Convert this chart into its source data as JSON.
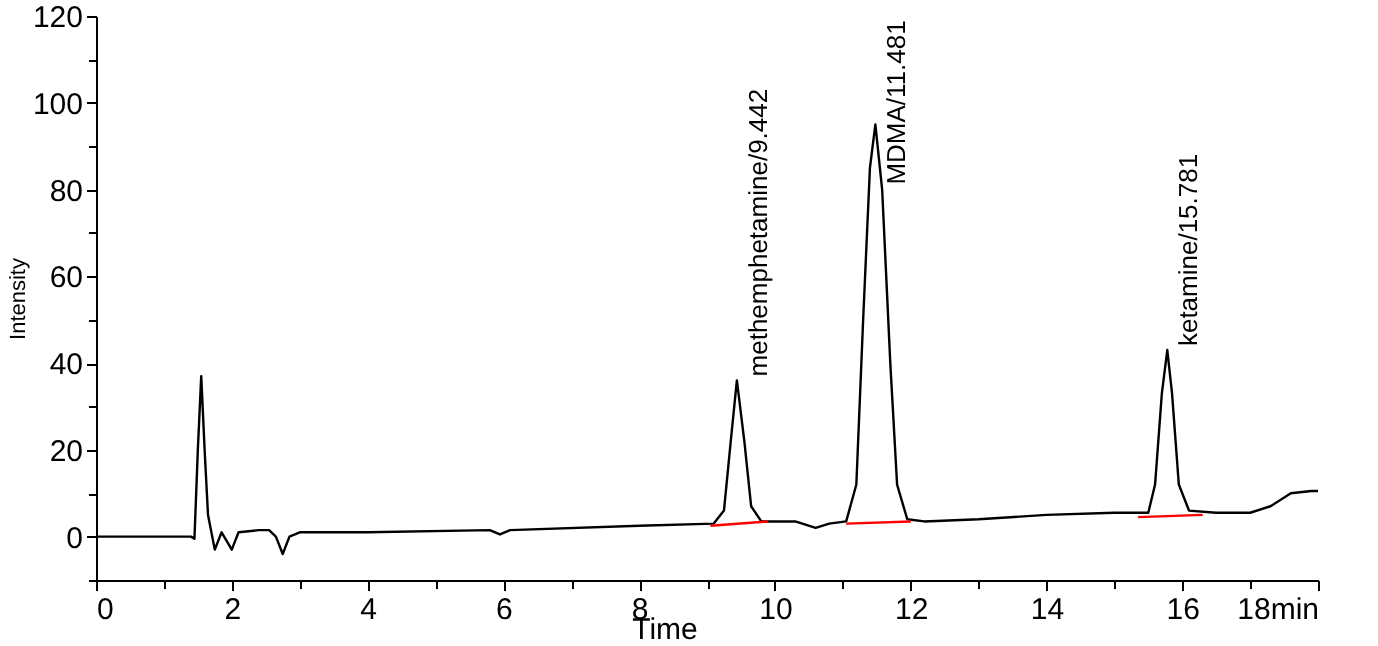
{
  "chart_data": {
    "type": "line",
    "xlabel": "Time",
    "ylabel": "Intensity",
    "xlim": [
      0,
      18
    ],
    "ylim": [
      -10,
      120
    ],
    "xticks": [
      0,
      {
        "value": 1,
        "label": null
      },
      2,
      {
        "value": 3,
        "label": null
      },
      4,
      {
        "value": 5,
        "label": null
      },
      6,
      {
        "value": 7,
        "label": null
      },
      8,
      {
        "value": 9,
        "label": null
      },
      10,
      {
        "value": 11,
        "label": null
      },
      12,
      {
        "value": 13,
        "label": null
      },
      14,
      {
        "value": 15,
        "label": null
      },
      16,
      {
        "value": 17,
        "label": null
      },
      {
        "value": 18,
        "label": "18min"
      }
    ],
    "yticks": [
      {
        "value": -10,
        "label": null
      },
      0,
      {
        "value": 10,
        "label": null
      },
      20,
      {
        "value": 30,
        "label": null
      },
      40,
      {
        "value": 50,
        "label": null
      },
      60,
      {
        "value": 70,
        "label": null
      },
      80,
      {
        "value": 90,
        "label": null
      },
      100,
      {
        "value": 110,
        "label": null
      },
      120
    ],
    "grid": false,
    "marker": "none",
    "line_style": "solid",
    "series": [
      {
        "color": "#000000",
        "x": [
          0,
          1.4,
          1.45,
          1.5,
          1.55,
          1.6,
          1.65,
          1.75,
          1.85,
          2.0,
          2.1,
          2.4,
          2.55,
          2.65,
          2.75,
          2.85,
          3.0,
          4,
          5.8,
          5.95,
          6.1,
          8,
          9.1,
          9.25,
          9.35,
          9.44,
          9.55,
          9.65,
          9.8,
          10.3,
          10.6,
          10.8,
          11.05,
          11.2,
          11.3,
          11.4,
          11.48,
          11.58,
          11.7,
          11.8,
          11.95,
          12.2,
          13,
          14,
          15,
          15.5,
          15.6,
          15.7,
          15.78,
          15.85,
          15.95,
          16.1,
          16.5,
          17,
          17.3,
          17.6,
          17.9,
          18
        ],
        "values": [
          0,
          0,
          -0.5,
          20,
          37,
          20,
          5,
          -3,
          1,
          -3,
          1,
          1.5,
          1.5,
          0,
          -4,
          0,
          1,
          1,
          1.5,
          0.5,
          1.5,
          2.5,
          3,
          6,
          22,
          36,
          22,
          7,
          3.5,
          3.5,
          2,
          3,
          3.5,
          12,
          50,
          85,
          95,
          80,
          40,
          12,
          4,
          3.5,
          4,
          5,
          5.5,
          5.5,
          12,
          33,
          43,
          33,
          12,
          6,
          5.5,
          5.5,
          7,
          10,
          10.5,
          10.5
        ]
      },
      {
        "color": "#ff0000",
        "x": [
          9.05,
          9.9,
          10.5,
          11.05,
          12.0,
          13.5,
          15.35,
          16.3
        ],
        "values": [
          2.5,
          3.5,
          null,
          3,
          3.5,
          null,
          4.5,
          5
        ]
      }
    ],
    "annotations": [
      {
        "text": "methemphetamine/9.442",
        "x": 9.442,
        "y": 36
      },
      {
        "text": "MDMA/11.481",
        "x": 11.481,
        "y": 95
      },
      {
        "text": "ketamine/15.781",
        "x": 15.781,
        "y": 43
      }
    ]
  }
}
